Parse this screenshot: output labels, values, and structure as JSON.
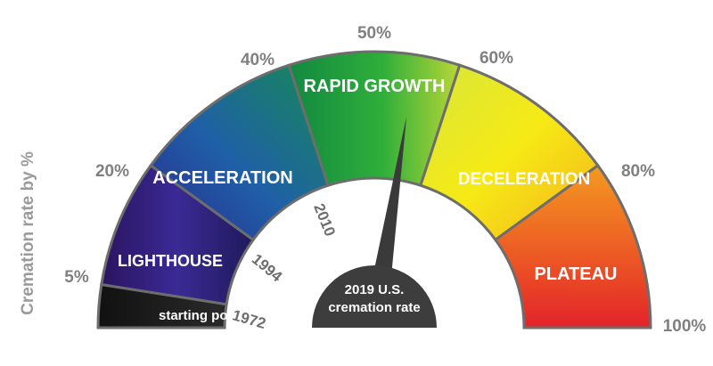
{
  "axis_label": "Cremation rate by %",
  "percent_labels": {
    "p5": "5%",
    "p20": "20%",
    "p40": "40%",
    "p50": "50%",
    "p60": "60%",
    "p80": "80%",
    "p100": "100%"
  },
  "year_labels": {
    "y1972": "1972",
    "y1994": "1994",
    "y2010": "2010"
  },
  "phases": {
    "starting_point": "starting point",
    "lighthouse": "LIGHTHOUSE",
    "acceleration": "ACCELERATION",
    "rapid_growth": "RAPID GROWTH",
    "deceleration": "DECELERATION",
    "plateau": "PLATEAU"
  },
  "needle": {
    "value_percent": 54.8,
    "label_line1": "2019 U.S.",
    "label_line2": "cremation rate"
  }
}
